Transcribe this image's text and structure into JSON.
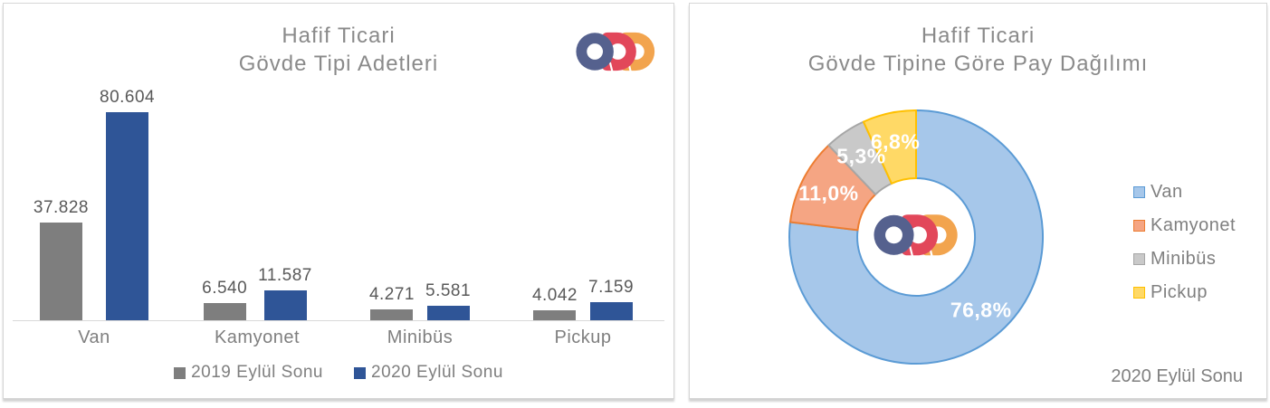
{
  "left_panel": {
    "title_line1": "Hafif Ticari",
    "title_line2": "Gövde Tipi Adetleri"
  },
  "right_panel": {
    "title_line1": "Hafif Ticari",
    "title_line2": "Gövde Tipine Göre Pay Dağılımı",
    "footnote": "2020 Eylül Sonu"
  },
  "logo": {
    "name": "ODD",
    "blue": "#55618E",
    "red": "#E2475A",
    "orange": "#F2A44E"
  },
  "chart_data": [
    {
      "type": "bar",
      "panel": "left",
      "title": "Hafif Ticari Gövde Tipi Adetleri",
      "categories": [
        "Van",
        "Kamyonet",
        "Minibüs",
        "Pickup"
      ],
      "series": [
        {
          "name": "2019 Eylül Sonu",
          "color": "#7E7E7E",
          "values": [
            37828,
            6540,
            4271,
            4042
          ],
          "value_labels": [
            "37.828",
            "6.540",
            "4.271",
            "4.042"
          ]
        },
        {
          "name": "2020 Eylül Sonu",
          "color": "#2F5597",
          "values": [
            80604,
            11587,
            5581,
            7159
          ],
          "value_labels": [
            "80.604",
            "11.587",
            "5.581",
            "7.159"
          ]
        }
      ],
      "ylim": [
        0,
        80604
      ],
      "gridlines": false,
      "axis_visible": true,
      "legend_position": "bottom"
    },
    {
      "type": "pie",
      "subtype": "donut",
      "panel": "right",
      "title": "Hafif Ticari Gövde Tipine Göre Pay Dağılımı",
      "categories": [
        "Van",
        "Kamyonet",
        "Minibüs",
        "Pickup"
      ],
      "values": [
        76.8,
        11.0,
        5.3,
        6.8
      ],
      "value_labels": [
        "76,8%",
        "11,0%",
        "5,3%",
        "6,8%"
      ],
      "fills": [
        "#A6C7EA",
        "#F5A583",
        "#C9C9C9",
        "#FFD966"
      ],
      "borders": [
        "#5B9BD5",
        "#ED7D31",
        "#A6A6A6",
        "#FFC000"
      ],
      "start_angle_deg": 0,
      "direction": "clockwise",
      "label_color": "#FFFFFF",
      "legend_position": "right",
      "footnote": "2020 Eylül Sonu"
    }
  ]
}
